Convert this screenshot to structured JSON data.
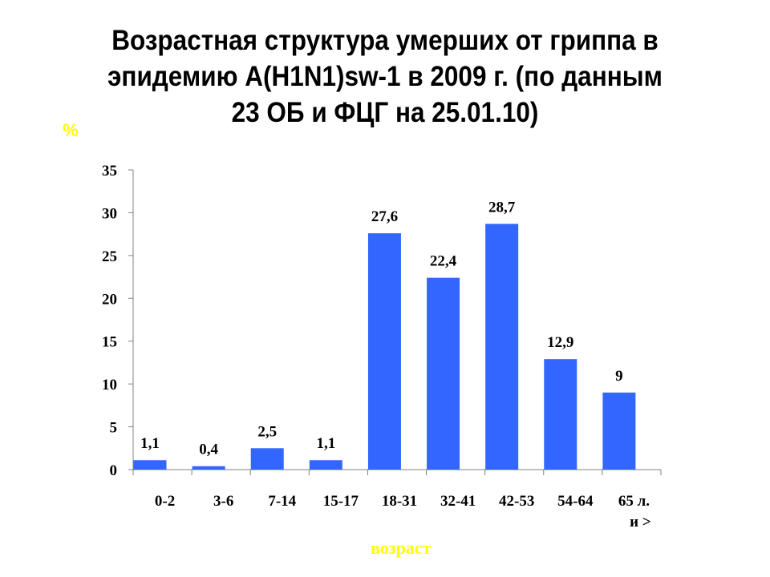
{
  "title": {
    "line1": "Возрастная структура умерших от гриппа в",
    "line2": "эпидемию A(H1N1)sw-1 в 2009 г. (по данным",
    "line3": "23 ОБ и ФЦГ на 25.01.10)"
  },
  "axis": {
    "ylabel": "%",
    "xlabel": "возраст",
    "y_ticks": [
      "0",
      "5",
      "10",
      "15",
      "20",
      "25",
      "30",
      "35"
    ]
  },
  "colors": {
    "bar": "#3366FF",
    "axis": "#808080",
    "axis_labels": "#FFFF00"
  },
  "bars": [
    {
      "category": "0-2",
      "value": 1.1,
      "label": "1,1"
    },
    {
      "category": "3-6",
      "value": 0.4,
      "label": "0,4"
    },
    {
      "category": "7-14",
      "value": 2.5,
      "label": "2,5"
    },
    {
      "category": "15-17",
      "value": 1.1,
      "label": "1,1"
    },
    {
      "category": "18-31",
      "value": 27.6,
      "label": "27,6"
    },
    {
      "category": "32-41",
      "value": 22.4,
      "label": "22,4"
    },
    {
      "category": "42-53",
      "value": 28.7,
      "label": "28,7"
    },
    {
      "category": "54-64",
      "value": 12.9,
      "label": "12,9"
    },
    {
      "category": "65 л. и >",
      "value": 9,
      "label": "9",
      "category_line1": "65 л.",
      "category_line2": "и >"
    }
  ],
  "chart_data": {
    "type": "bar",
    "title": "Возрастная структура умерших от гриппа в эпидемию A(H1N1)sw-1 в 2009 г. (по данным 23 ОБ и ФЦГ на 25.01.10)",
    "categories": [
      "0-2",
      "3-6",
      "7-14",
      "15-17",
      "18-31",
      "32-41",
      "42-53",
      "54-64",
      "65 л. и >"
    ],
    "values": [
      1.1,
      0.4,
      2.5,
      1.1,
      27.6,
      22.4,
      28.7,
      12.9,
      9
    ],
    "data_labels": [
      "1,1",
      "0,4",
      "2,5",
      "1,1",
      "27,6",
      "22,4",
      "28,7",
      "12,9",
      "9"
    ],
    "xlabel": "возраст",
    "ylabel": "%",
    "ylim": [
      0,
      35
    ],
    "y_ticks": [
      0,
      5,
      10,
      15,
      20,
      25,
      30,
      35
    ],
    "grid": false,
    "legend": null
  }
}
